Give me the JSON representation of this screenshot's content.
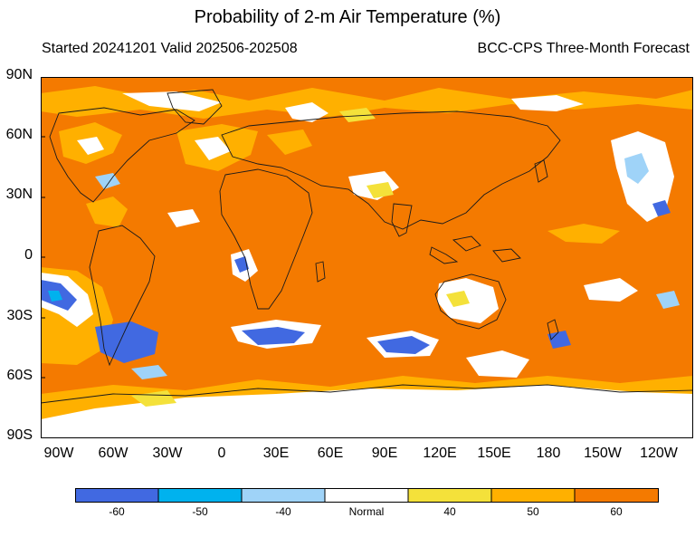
{
  "title": "Probability of 2-m Air Temperature (%)",
  "subtitle_left": "Started 20241201  Valid 202506-202508",
  "subtitle_right": "BCC-CPS Three-Month Forecast",
  "lat_labels": [
    "90N",
    "60N",
    "30N",
    "0",
    "30S",
    "60S",
    "90S"
  ],
  "lon_labels": [
    "90W",
    "60W",
    "30W",
    "0",
    "30E",
    "60E",
    "90E",
    "120E",
    "150E",
    "180",
    "150W",
    "120W"
  ],
  "colorbar": {
    "labels": [
      "-60",
      "-50",
      "-40",
      "Normal",
      "40",
      "50",
      "60"
    ],
    "colors": [
      "#4169e1",
      "#00b2ee",
      "#9fd3f8",
      "#ffffff",
      "#f4e13a",
      "#ffb000",
      "#f47a00"
    ]
  },
  "colors": {
    "warm_60": "#f47a00",
    "warm_50": "#ffb000",
    "warm_40": "#f4e13a",
    "normal": "#ffffff",
    "cold_40": "#9fd3f8",
    "cold_50": "#00b2ee",
    "cold_60": "#4169e1",
    "coast": "#1a1a1a"
  }
}
